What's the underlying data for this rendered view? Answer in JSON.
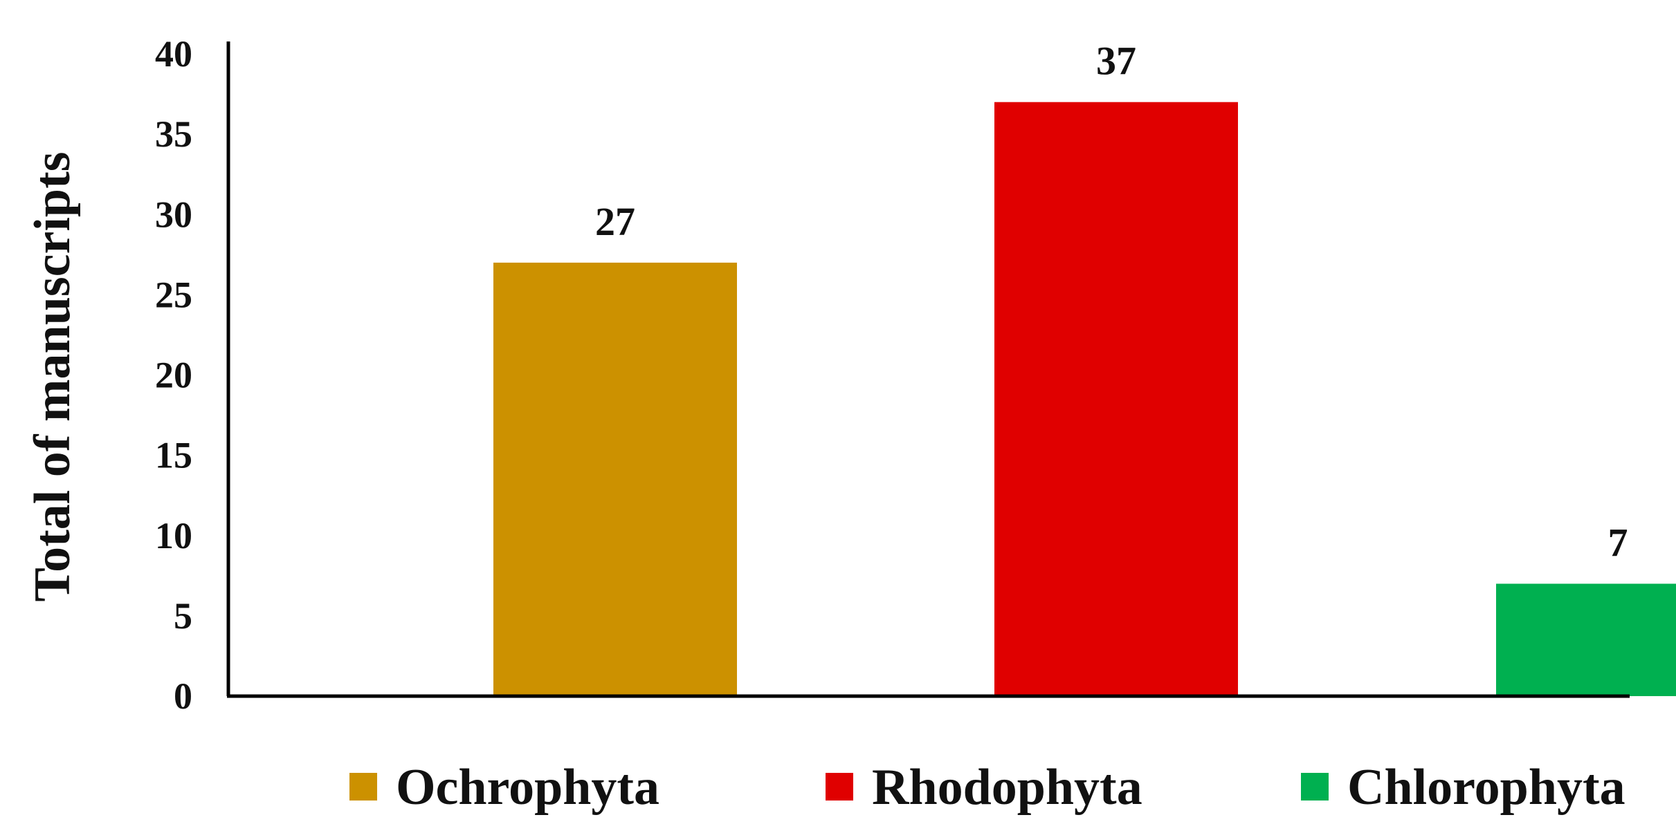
{
  "chart_data": {
    "type": "bar",
    "title": "",
    "xlabel": "",
    "ylabel": "Total of manuscripts",
    "ylim": [
      0,
      40
    ],
    "yticks": [
      0,
      5,
      10,
      15,
      20,
      25,
      30,
      35,
      40
    ],
    "grid": false,
    "legend_position": "bottom",
    "categories": [
      "Ochrophyta",
      "Rhodophyta",
      "Chlorophyta"
    ],
    "values": [
      27,
      37,
      7
    ],
    "data_labels": [
      "27",
      "37",
      "7"
    ],
    "colors": [
      "#CC9100",
      "#E00000",
      "#00B050"
    ],
    "axis_color": "#000000"
  }
}
